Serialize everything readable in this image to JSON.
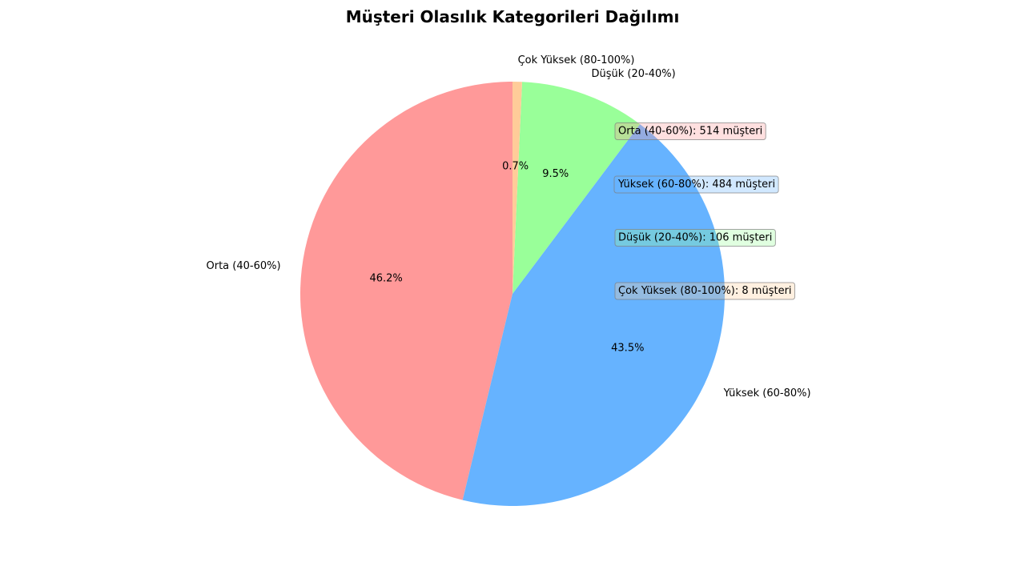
{
  "chart_data": {
    "type": "pie",
    "title": "Müşteri Olasılık Kategorileri Dağılımı",
    "slices": [
      {
        "label": "Orta (40-60%)",
        "value": 514,
        "percent_label": "46.2%",
        "color": "#ff9999"
      },
      {
        "label": "Yüksek (60-80%)",
        "value": 484,
        "percent_label": "43.5%",
        "color": "#66b3ff"
      },
      {
        "label": "Düşük (20-40%)",
        "value": 106,
        "percent_label": "9.5%",
        "color": "#99ff99"
      },
      {
        "label": "Çok Yüksek (80-100%)",
        "value": 8,
        "percent_label": "0.7%",
        "color": "#ffcc99"
      }
    ],
    "start_angle_deg": 90,
    "direction": "counterclockwise",
    "annotations": [
      {
        "text": "Orta (40-60%): 514 müşteri",
        "color": "#ff9999"
      },
      {
        "text": "Yüksek (60-80%): 484 müşteri",
        "color": "#66b3ff"
      },
      {
        "text": "Düşük (20-40%): 106 müşteri",
        "color": "#99ff99"
      },
      {
        "text": "Çok Yüksek (80-100%): 8 müşteri",
        "color": "#ffcc99"
      }
    ]
  }
}
